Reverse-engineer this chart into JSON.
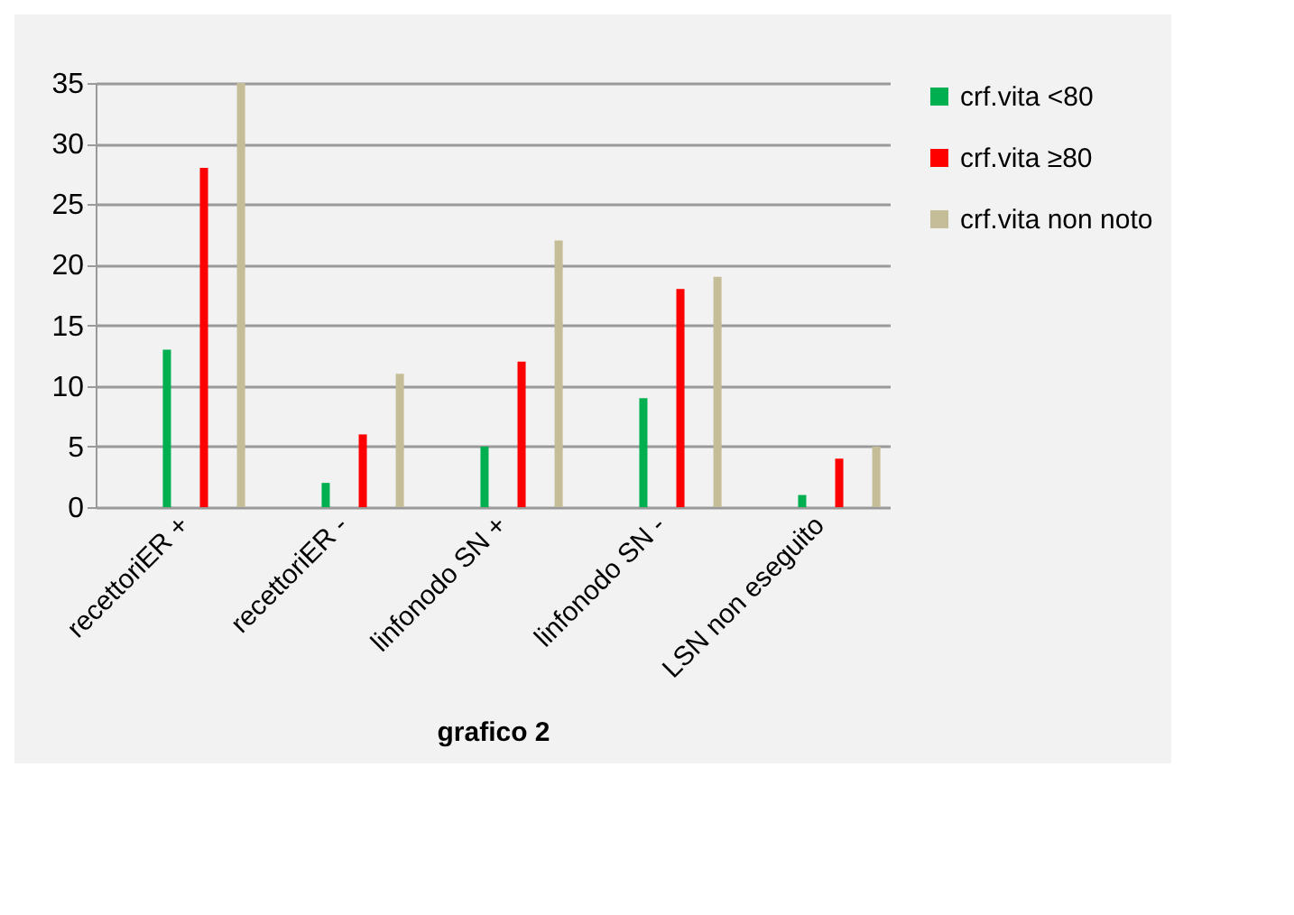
{
  "chart_data": {
    "type": "bar",
    "xlabel": "grafico 2",
    "categories": [
      "recettoriER +",
      "recettoriER -",
      "linfonodo SN +",
      "linfonodo SN -",
      "LSN non eseguito"
    ],
    "series": [
      {
        "name": "crf.vita <80",
        "color": "#00b050",
        "values": [
          13,
          2,
          5,
          9,
          1
        ]
      },
      {
        "name": "crf.vita ≥80",
        "color": "#ff0000",
        "values": [
          28,
          6,
          12,
          18,
          4
        ]
      },
      {
        "name": "crf.vita non noto",
        "color": "#c4bd97",
        "values": [
          35,
          11,
          22,
          19,
          5
        ]
      }
    ],
    "ylim": [
      0,
      35
    ],
    "yticks": [
      0,
      5,
      10,
      15,
      20,
      25,
      30,
      35
    ],
    "grid": "y",
    "legend": "right"
  }
}
